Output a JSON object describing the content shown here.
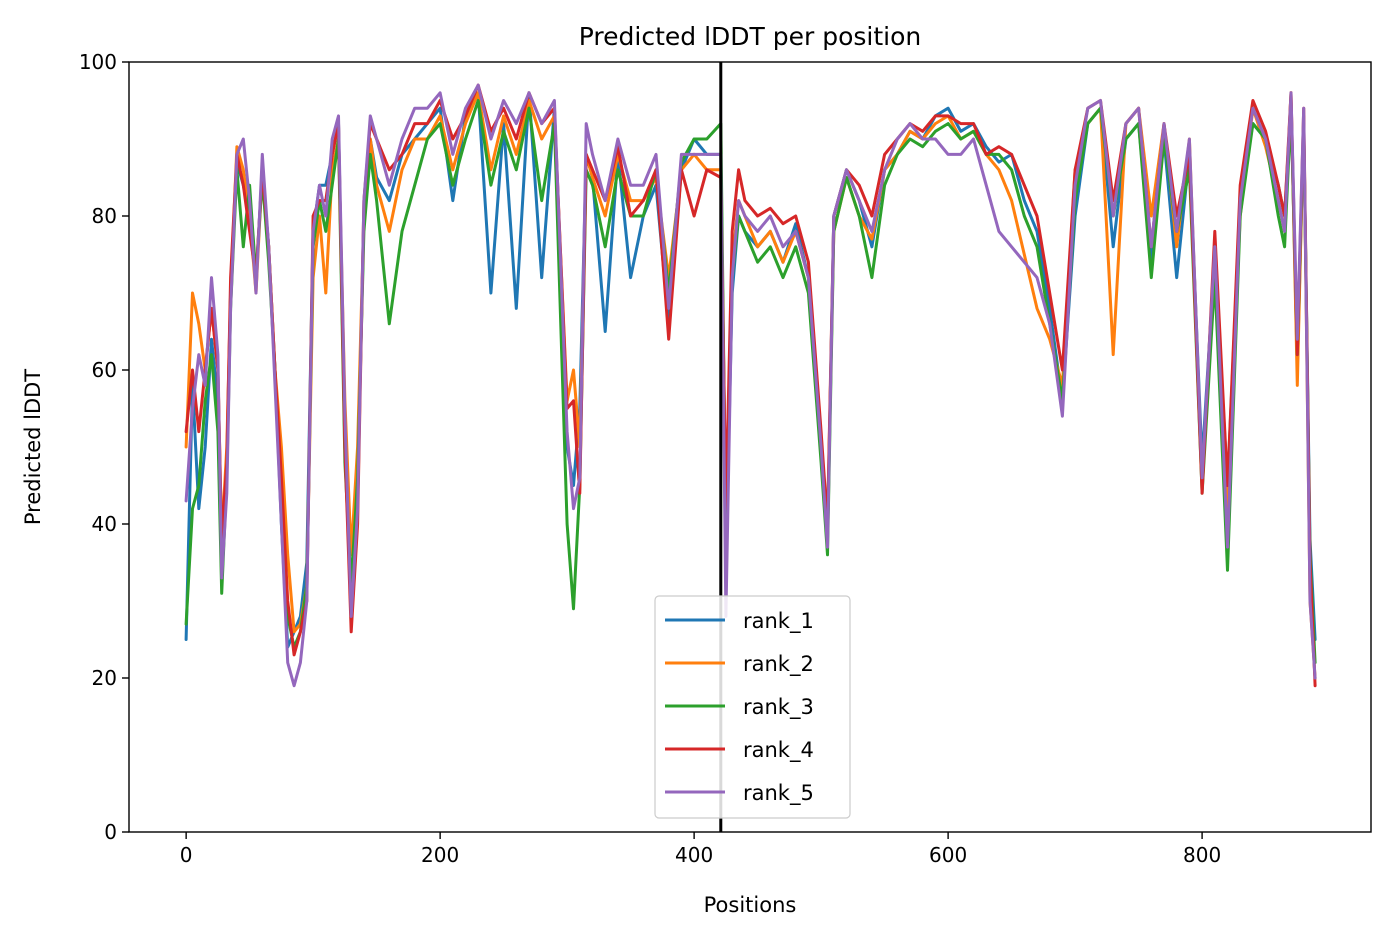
{
  "chart_data": {
    "type": "line",
    "title": "Predicted lDDT per position",
    "xlabel": "Positions",
    "ylabel": "Predicted lDDT",
    "xlim": [
      -45,
      933
    ],
    "ylim": [
      0,
      100
    ],
    "xticks": [
      0,
      200,
      400,
      600,
      800
    ],
    "yticks": [
      0,
      20,
      40,
      60,
      80,
      100
    ],
    "grid": false,
    "legend_position": "lower-center",
    "divider_x": 421,
    "x": [
      0,
      5,
      10,
      15,
      20,
      25,
      28,
      32,
      35,
      40,
      45,
      50,
      55,
      60,
      65,
      70,
      75,
      80,
      85,
      90,
      95,
      100,
      105,
      110,
      115,
      120,
      125,
      130,
      135,
      140,
      145,
      150,
      160,
      170,
      180,
      190,
      200,
      210,
      220,
      230,
      240,
      250,
      260,
      270,
      280,
      290,
      300,
      305,
      310,
      315,
      320,
      330,
      340,
      350,
      360,
      370,
      380,
      390,
      400,
      410,
      421,
      425,
      430,
      435,
      440,
      450,
      460,
      470,
      480,
      490,
      500,
      505,
      510,
      520,
      530,
      540,
      550,
      560,
      570,
      580,
      590,
      600,
      610,
      620,
      630,
      640,
      650,
      660,
      670,
      680,
      690,
      700,
      710,
      720,
      730,
      740,
      750,
      760,
      770,
      780,
      790,
      800,
      810,
      820,
      830,
      840,
      850,
      860,
      865,
      870,
      875,
      880,
      885,
      889
    ],
    "series": [
      {
        "name": "rank_1",
        "color": "#1f77b4",
        "values": [
          25,
          58,
          42,
          50,
          64,
          56,
          36,
          48,
          70,
          87,
          84,
          80,
          72,
          86,
          76,
          60,
          40,
          24,
          26,
          28,
          35,
          78,
          84,
          84,
          88,
          92,
          50,
          30,
          45,
          80,
          90,
          85,
          82,
          88,
          90,
          92,
          94,
          82,
          93,
          96,
          70,
          92,
          68,
          96,
          72,
          94,
          50,
          45,
          55,
          88,
          85,
          65,
          88,
          72,
          80,
          84,
          66,
          86,
          90,
          88,
          88,
          35,
          70,
          80,
          78,
          76,
          78,
          74,
          79,
          72,
          50,
          38,
          80,
          86,
          82,
          76,
          86,
          88,
          91,
          90,
          93,
          94,
          91,
          92,
          89,
          87,
          88,
          82,
          78,
          68,
          56,
          80,
          92,
          94,
          76,
          90,
          92,
          74,
          90,
          72,
          88,
          48,
          75,
          45,
          82,
          92,
          90,
          84,
          80,
          95,
          60,
          92,
          38,
          25
        ]
      },
      {
        "name": "rank_2",
        "color": "#ff7f0e",
        "values": [
          50,
          70,
          66,
          60,
          68,
          60,
          38,
          50,
          70,
          89,
          86,
          80,
          70,
          86,
          76,
          60,
          50,
          36,
          26,
          27,
          32,
          72,
          80,
          70,
          86,
          90,
          56,
          36,
          50,
          80,
          90,
          84,
          78,
          86,
          90,
          90,
          93,
          86,
          92,
          96,
          86,
          93,
          88,
          95,
          90,
          93,
          56,
          60,
          50,
          88,
          85,
          80,
          88,
          82,
          82,
          85,
          72,
          86,
          88,
          86,
          86,
          40,
          74,
          82,
          80,
          76,
          78,
          74,
          78,
          72,
          50,
          40,
          78,
          85,
          80,
          77,
          86,
          88,
          91,
          90,
          92,
          93,
          90,
          91,
          88,
          86,
          82,
          75,
          68,
          64,
          58,
          86,
          92,
          94,
          62,
          92,
          94,
          80,
          92,
          76,
          90,
          45,
          74,
          42,
          80,
          94,
          89,
          82,
          78,
          96,
          58,
          93,
          30,
          20
        ]
      },
      {
        "name": "rank_3",
        "color": "#2ca02c",
        "values": [
          27,
          42,
          45,
          56,
          62,
          52,
          31,
          46,
          68,
          86,
          76,
          84,
          72,
          85,
          74,
          60,
          42,
          28,
          24,
          26,
          32,
          76,
          82,
          78,
          84,
          90,
          48,
          32,
          46,
          78,
          88,
          82,
          66,
          78,
          84,
          90,
          92,
          84,
          90,
          95,
          84,
          91,
          86,
          94,
          82,
          92,
          40,
          29,
          45,
          86,
          84,
          76,
          86,
          80,
          80,
          86,
          70,
          87,
          90,
          90,
          92,
          38,
          72,
          80,
          78,
          74,
          76,
          72,
          76,
          70,
          48,
          36,
          78,
          85,
          80,
          72,
          84,
          88,
          90,
          89,
          91,
          92,
          90,
          91,
          88,
          88,
          86,
          80,
          76,
          66,
          56,
          82,
          92,
          94,
          80,
          90,
          92,
          72,
          90,
          78,
          86,
          44,
          72,
          34,
          80,
          92,
          90,
          80,
          76,
          94,
          62,
          92,
          36,
          22
        ]
      },
      {
        "name": "rank_4",
        "color": "#d62728",
        "values": [
          52,
          60,
          52,
          60,
          68,
          60,
          38,
          48,
          72,
          88,
          84,
          78,
          72,
          86,
          76,
          60,
          46,
          30,
          23,
          26,
          30,
          80,
          82,
          82,
          88,
          92,
          50,
          26,
          40,
          82,
          92,
          90,
          86,
          88,
          92,
          92,
          95,
          90,
          93,
          97,
          91,
          94,
          90,
          96,
          92,
          94,
          55,
          56,
          44,
          88,
          86,
          82,
          89,
          80,
          82,
          86,
          64,
          86,
          80,
          86,
          85,
          42,
          78,
          86,
          82,
          80,
          81,
          79,
          80,
          74,
          52,
          40,
          80,
          86,
          84,
          80,
          88,
          90,
          92,
          91,
          93,
          93,
          92,
          92,
          88,
          89,
          88,
          84,
          80,
          70,
          60,
          86,
          94,
          95,
          82,
          92,
          94,
          76,
          92,
          80,
          88,
          44,
          78,
          45,
          84,
          95,
          91,
          84,
          80,
          96,
          62,
          94,
          35,
          19
        ]
      },
      {
        "name": "rank_5",
        "color": "#9467bd",
        "values": [
          43,
          55,
          62,
          58,
          72,
          62,
          33,
          44,
          68,
          88,
          90,
          82,
          70,
          88,
          76,
          58,
          40,
          22,
          19,
          22,
          30,
          78,
          84,
          80,
          90,
          93,
          54,
          28,
          42,
          82,
          93,
          90,
          84,
          90,
          94,
          94,
          96,
          88,
          94,
          97,
          90,
          95,
          92,
          96,
          92,
          95,
          52,
          42,
          46,
          92,
          88,
          82,
          90,
          84,
          84,
          88,
          68,
          88,
          88,
          88,
          88,
          28,
          72,
          82,
          80,
          78,
          80,
          76,
          78,
          72,
          50,
          37,
          80,
          86,
          82,
          78,
          86,
          90,
          92,
          90,
          90,
          88,
          88,
          90,
          84,
          78,
          76,
          74,
          72,
          66,
          54,
          84,
          94,
          95,
          80,
          92,
          94,
          76,
          92,
          78,
          90,
          46,
          76,
          37,
          82,
          94,
          90,
          82,
          78,
          96,
          64,
          94,
          30,
          20
        ]
      }
    ]
  }
}
